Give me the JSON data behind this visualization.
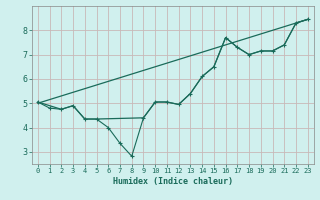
{
  "xlabel": "Humidex (Indice chaleur)",
  "bg_color": "#d0f0ee",
  "grid_color": "#c8b8b8",
  "line_color": "#1a6b5a",
  "xlim": [
    -0.5,
    23.5
  ],
  "ylim": [
    2.5,
    9.0
  ],
  "xticks": [
    0,
    1,
    2,
    3,
    4,
    5,
    6,
    7,
    8,
    9,
    10,
    11,
    12,
    13,
    14,
    15,
    16,
    17,
    18,
    19,
    20,
    21,
    22,
    23
  ],
  "yticks": [
    3,
    4,
    5,
    6,
    7,
    8
  ],
  "line1_x": [
    0,
    1,
    2,
    3,
    4,
    5,
    6,
    7,
    8,
    9,
    10,
    11,
    12,
    13,
    14,
    15,
    16,
    17,
    18,
    19,
    20,
    21,
    22,
    23
  ],
  "line1_y": [
    5.05,
    4.8,
    4.75,
    4.9,
    4.35,
    4.35,
    4.0,
    3.35,
    2.82,
    4.4,
    5.05,
    5.05,
    4.95,
    5.4,
    6.1,
    6.5,
    7.7,
    7.3,
    7.0,
    7.15,
    7.15,
    7.4,
    8.3,
    8.45
  ],
  "line2_x": [
    0,
    2,
    3,
    4,
    5,
    9,
    10,
    11,
    12,
    13,
    14,
    15,
    16,
    17,
    18,
    19,
    20,
    21,
    22,
    23
  ],
  "line2_y": [
    5.05,
    4.75,
    4.9,
    4.35,
    4.35,
    4.4,
    5.05,
    5.05,
    4.95,
    5.4,
    6.1,
    6.5,
    7.7,
    7.3,
    7.0,
    7.15,
    7.15,
    7.4,
    8.3,
    8.45
  ],
  "trend_x": [
    0,
    23
  ],
  "trend_y": [
    5.0,
    8.45
  ]
}
